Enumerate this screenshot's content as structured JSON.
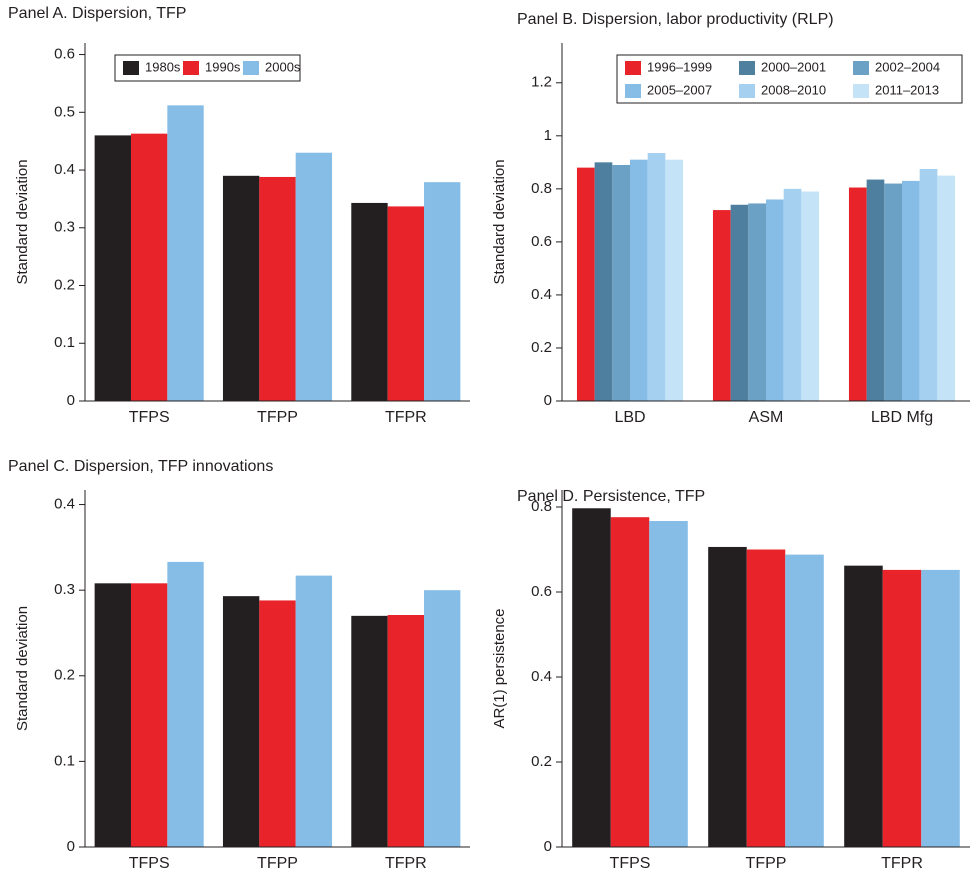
{
  "chart_data": [
    {
      "type": "bar",
      "title": "Panel A. Dispersion, TFP",
      "y_label": "Standard deviation",
      "categories": [
        "TFPS",
        "TFPP",
        "TFPR"
      ],
      "series": [
        {
          "name": "1980s",
          "color": "#231f20",
          "values": [
            0.46,
            0.39,
            0.343
          ]
        },
        {
          "name": "1990s",
          "color": "#e8232a",
          "values": [
            0.463,
            0.388,
            0.337
          ]
        },
        {
          "name": "2000s",
          "color": "#86bde6",
          "values": [
            0.512,
            0.43,
            0.379
          ]
        }
      ],
      "ylim": [
        0,
        0.62
      ],
      "yticks": [
        0,
        0.1,
        0.2,
        0.3,
        0.4,
        0.5,
        0.6
      ],
      "legend": "top-left"
    },
    {
      "type": "bar",
      "title": "Panel B. Dispersion, labor productivity (RLP)",
      "y_label": "Standard deviation",
      "categories": [
        "LBD",
        "ASM",
        "LBD Mfg"
      ],
      "series": [
        {
          "name": "1996–1999",
          "color": "#e8232a",
          "values": [
            0.88,
            0.72,
            0.805
          ]
        },
        {
          "name": "2000–2001",
          "color": "#4f7f9f",
          "values": [
            0.9,
            0.74,
            0.835
          ]
        },
        {
          "name": "2002–2004",
          "color": "#6ba1c4",
          "values": [
            0.89,
            0.745,
            0.82
          ]
        },
        {
          "name": "2005–2007",
          "color": "#86bde6",
          "values": [
            0.91,
            0.76,
            0.83
          ]
        },
        {
          "name": "2008–2010",
          "color": "#a5d0f0",
          "values": [
            0.935,
            0.8,
            0.875
          ]
        },
        {
          "name": "2011–2013",
          "color": "#c5e3f7",
          "values": [
            0.91,
            0.79,
            0.85
          ]
        }
      ],
      "ylim": [
        0,
        1.35
      ],
      "yticks": [
        0,
        0.2,
        0.4,
        0.6,
        0.8,
        1,
        1.2
      ],
      "legend": "top-right"
    },
    {
      "type": "bar",
      "title": "Panel C. Dispersion, TFP innovations",
      "y_label": "Standard deviation",
      "categories": [
        "TFPS",
        "TFPP",
        "TFPR"
      ],
      "series": [
        {
          "color": "#231f20",
          "values": [
            0.308,
            0.293,
            0.27
          ]
        },
        {
          "color": "#e8232a",
          "values": [
            0.308,
            0.288,
            0.271
          ]
        },
        {
          "color": "#86bde6",
          "values": [
            0.333,
            0.317,
            0.3
          ]
        }
      ],
      "ylim": [
        0,
        0.417
      ],
      "yticks": [
        0,
        0.1,
        0.2,
        0.3,
        0.4
      ]
    },
    {
      "type": "bar",
      "title": "Panel D. Persistence, TFP",
      "y_label": "AR(1) persistence",
      "categories": [
        "TFPS",
        "TFPP",
        "TFPR"
      ],
      "series": [
        {
          "color": "#231f20",
          "values": [
            0.797,
            0.706,
            0.662
          ]
        },
        {
          "color": "#e8232a",
          "values": [
            0.776,
            0.7,
            0.652
          ]
        },
        {
          "color": "#86bde6",
          "values": [
            0.767,
            0.688,
            0.652
          ]
        }
      ],
      "ylim": [
        0,
        0.84
      ],
      "yticks": [
        0,
        0.2,
        0.4,
        0.6,
        0.8
      ]
    }
  ]
}
